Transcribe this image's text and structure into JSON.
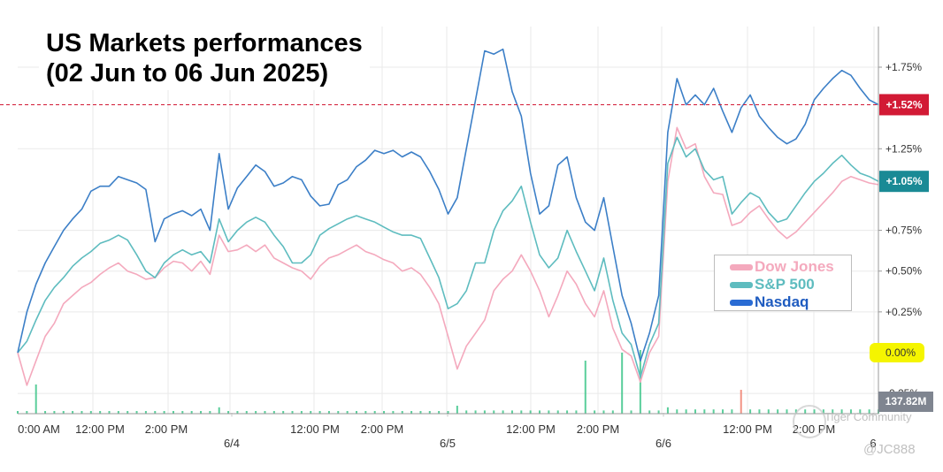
{
  "title": {
    "line1": "US Markets performances",
    "line2": "(02 Jun to 06 Jun 2025)"
  },
  "colors": {
    "dow": "#f4a9bd",
    "sp500": "#5ebcbf",
    "nasdaq": "#3c7fc7",
    "marker_red": "#d21a35",
    "marker_teal": "#1a8a95",
    "zero_highlight": "#f5f500",
    "volume": "#3dc68a",
    "volume_red": "#f08070",
    "grid": "#eaeaea"
  },
  "legend": {
    "dow_label": "Dow Jones",
    "sp_label": "S&P 500",
    "nasdaq_label": "Nasdaq"
  },
  "volume_label": "137.82M",
  "watermark": {
    "text": "Tiger Community",
    "handle": "@JC888"
  },
  "chart_data": {
    "type": "line",
    "title": "US Markets performances (02 Jun to 06 Jun 2025)",
    "x_tick_labels": [
      "0:00 AM",
      "12:00 PM",
      "2:00 PM",
      "12:00 PM",
      "2:00 PM",
      "12:00 PM",
      "2:00 PM",
      "12:00 PM",
      "2:00 PM"
    ],
    "day_labels": [
      "6/4",
      "6/5",
      "6/6",
      "6"
    ],
    "y_ticks": [
      "+1.75%",
      "+1.25%",
      "+0.75%",
      "+0.50%",
      "+0.25%",
      "0.00%",
      "-0.25%"
    ],
    "ylim": [
      -0.3,
      1.95
    ],
    "y_unit": "%",
    "reference_line": {
      "value": 1.52,
      "label": "+1.52%",
      "style": "dashed"
    },
    "end_markers": [
      {
        "series": "Nasdaq",
        "value": 1.52,
        "label": "+1.52%"
      },
      {
        "series": "S&P 500",
        "value": 1.05,
        "label": "+1.05%"
      }
    ],
    "series": [
      {
        "name": "Nasdaq",
        "values": [
          0.0,
          0.25,
          0.42,
          0.55,
          0.65,
          0.75,
          0.82,
          0.88,
          0.99,
          1.02,
          1.02,
          1.08,
          1.06,
          1.04,
          1.0,
          0.68,
          0.82,
          0.85,
          0.87,
          0.84,
          0.88,
          0.75,
          1.22,
          0.88,
          1.01,
          1.08,
          1.15,
          1.11,
          1.02,
          1.04,
          1.08,
          1.06,
          0.96,
          0.9,
          0.91,
          1.03,
          1.06,
          1.14,
          1.18,
          1.24,
          1.22,
          1.24,
          1.2,
          1.23,
          1.2,
          1.11,
          1.0,
          0.85,
          0.95,
          1.25,
          1.55,
          1.85,
          1.83,
          1.86,
          1.6,
          1.45,
          1.1,
          0.85,
          0.9,
          1.15,
          1.2,
          0.95,
          0.8,
          0.75,
          0.95,
          0.65,
          0.35,
          0.18,
          -0.05,
          0.12,
          0.35,
          1.35,
          1.68,
          1.52,
          1.58,
          1.52,
          1.62,
          1.48,
          1.35,
          1.5,
          1.58,
          1.45,
          1.38,
          1.32,
          1.28,
          1.31,
          1.4,
          1.55,
          1.62,
          1.68,
          1.73,
          1.7,
          1.62,
          1.55,
          1.52
        ]
      },
      {
        "name": "S&P 500",
        "values": [
          0.0,
          0.07,
          0.2,
          0.32,
          0.4,
          0.46,
          0.53,
          0.58,
          0.62,
          0.67,
          0.69,
          0.72,
          0.69,
          0.6,
          0.5,
          0.46,
          0.55,
          0.6,
          0.63,
          0.6,
          0.62,
          0.55,
          0.82,
          0.68,
          0.75,
          0.8,
          0.83,
          0.8,
          0.72,
          0.65,
          0.55,
          0.55,
          0.6,
          0.72,
          0.76,
          0.79,
          0.82,
          0.84,
          0.82,
          0.8,
          0.77,
          0.74,
          0.72,
          0.72,
          0.7,
          0.58,
          0.46,
          0.27,
          0.3,
          0.38,
          0.55,
          0.55,
          0.75,
          0.87,
          0.93,
          1.02,
          0.8,
          0.6,
          0.52,
          0.58,
          0.75,
          0.62,
          0.5,
          0.38,
          0.58,
          0.32,
          0.12,
          0.05,
          -0.15,
          0.05,
          0.18,
          1.16,
          1.32,
          1.2,
          1.25,
          1.12,
          1.06,
          1.08,
          0.85,
          0.92,
          0.98,
          0.95,
          0.86,
          0.8,
          0.82,
          0.9,
          0.98,
          1.05,
          1.1,
          1.16,
          1.21,
          1.15,
          1.1,
          1.08,
          1.05
        ]
      },
      {
        "name": "Dow Jones",
        "values": [
          0.0,
          -0.2,
          -0.05,
          0.1,
          0.18,
          0.3,
          0.35,
          0.4,
          0.43,
          0.48,
          0.52,
          0.55,
          0.5,
          0.48,
          0.45,
          0.46,
          0.52,
          0.56,
          0.55,
          0.5,
          0.56,
          0.48,
          0.72,
          0.62,
          0.63,
          0.66,
          0.62,
          0.66,
          0.58,
          0.55,
          0.52,
          0.5,
          0.45,
          0.53,
          0.58,
          0.6,
          0.63,
          0.66,
          0.62,
          0.6,
          0.57,
          0.55,
          0.5,
          0.52,
          0.48,
          0.4,
          0.3,
          0.1,
          -0.1,
          0.04,
          0.12,
          0.2,
          0.38,
          0.45,
          0.5,
          0.6,
          0.5,
          0.38,
          0.22,
          0.35,
          0.5,
          0.42,
          0.3,
          0.22,
          0.38,
          0.15,
          0.02,
          -0.02,
          -0.18,
          0.0,
          0.1,
          1.05,
          1.38,
          1.25,
          1.28,
          1.08,
          0.98,
          0.97,
          0.78,
          0.8,
          0.86,
          0.9,
          0.82,
          0.75,
          0.7,
          0.74,
          0.8,
          0.86,
          0.92,
          0.98,
          1.05,
          1.08,
          1.06,
          1.04,
          1.03
        ]
      }
    ],
    "volume": [
      0.05,
      0.05,
      0.55,
      0.05,
      0.05,
      0.05,
      0.05,
      0.05,
      0.05,
      0.05,
      0.05,
      0.05,
      0.05,
      0.05,
      0.05,
      0.05,
      0.05,
      0.05,
      0.05,
      0.05,
      0.05,
      0.05,
      0.12,
      0.05,
      0.05,
      0.05,
      0.05,
      0.05,
      0.05,
      0.05,
      0.05,
      0.05,
      0.05,
      0.05,
      0.05,
      0.05,
      0.05,
      0.05,
      0.05,
      0.05,
      0.05,
      0.05,
      0.05,
      0.05,
      0.05,
      0.05,
      0.05,
      0.05,
      0.15,
      0.06,
      0.06,
      0.06,
      0.06,
      0.06,
      0.06,
      0.06,
      0.06,
      0.06,
      0.06,
      0.06,
      0.06,
      0.06,
      1.0,
      0.06,
      0.06,
      0.06,
      1.15,
      0.06,
      1.2,
      0.06,
      0.06,
      0.12,
      0.08,
      0.08,
      0.08,
      0.08,
      0.08,
      0.08,
      0.08,
      0.45,
      0.08,
      0.08,
      0.08,
      0.08,
      0.08,
      0.08,
      0.08,
      0.08,
      0.08,
      0.08,
      0.08,
      0.08,
      0.08,
      0.08,
      0.08
    ]
  }
}
